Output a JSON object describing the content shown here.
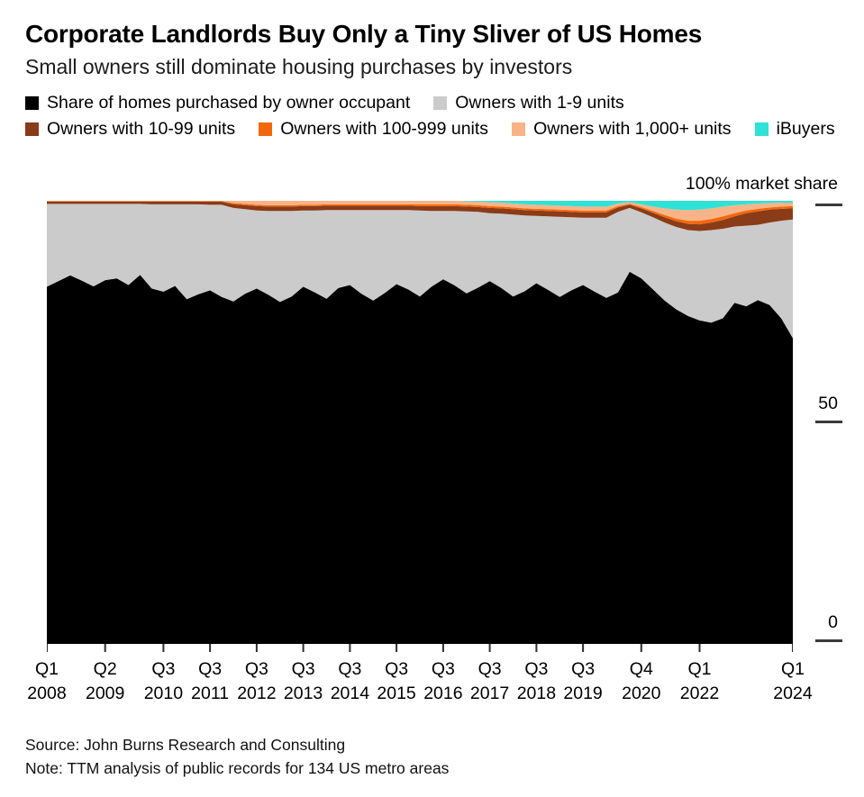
{
  "header": {
    "title": "Corporate Landlords Buy Only a Tiny Sliver of US Homes",
    "subtitle": "Small owners still dominate housing purchases by investors"
  },
  "legend": {
    "items": [
      {
        "label": "Share of homes purchased by owner occupant",
        "color": "#000000"
      },
      {
        "label": "Owners with 1-9 units",
        "color": "#cbcbcb"
      },
      {
        "label": "Owners with 10-99 units",
        "color": "#8a3b17"
      },
      {
        "label": "Owners with 100-999 units",
        "color": "#f2670c"
      },
      {
        "label": "Owners with 1,000+ units",
        "color": "#f8b488"
      },
      {
        "label": "iBuyers",
        "color": "#2ee3d6"
      }
    ]
  },
  "chart_data": {
    "type": "area",
    "stacked": true,
    "unit": "% market share",
    "x_frequency": "quarterly",
    "x_start": "2008 Q1",
    "x_end": "2024 Q1",
    "ylim": [
      0,
      100
    ],
    "grid": false,
    "legend_position": "top",
    "y_ticks": [
      {
        "value": 100,
        "label": "100% market share"
      },
      {
        "value": 50,
        "label": "50"
      },
      {
        "value": 0,
        "label": "0"
      }
    ],
    "x_ticks": [
      {
        "index": 0,
        "quarter": "Q1",
        "year": "2008"
      },
      {
        "index": 5,
        "quarter": "Q2",
        "year": "2009"
      },
      {
        "index": 10,
        "quarter": "Q3",
        "year": "2010"
      },
      {
        "index": 14,
        "quarter": "Q3",
        "year": "2011"
      },
      {
        "index": 18,
        "quarter": "Q3",
        "year": "2012"
      },
      {
        "index": 22,
        "quarter": "Q3",
        "year": "2013"
      },
      {
        "index": 26,
        "quarter": "Q3",
        "year": "2014"
      },
      {
        "index": 30,
        "quarter": "Q3",
        "year": "2015"
      },
      {
        "index": 34,
        "quarter": "Q3",
        "year": "2016"
      },
      {
        "index": 38,
        "quarter": "Q3",
        "year": "2017"
      },
      {
        "index": 42,
        "quarter": "Q3",
        "year": "2018"
      },
      {
        "index": 46,
        "quarter": "Q3",
        "year": "2019"
      },
      {
        "index": 51,
        "quarter": "Q4",
        "year": "2020"
      },
      {
        "index": 56,
        "quarter": "Q1",
        "year": "2022"
      },
      {
        "index": 64,
        "quarter": "Q1",
        "year": "2024"
      }
    ],
    "series": [
      {
        "id": "owner-occupant",
        "name": "Share of homes purchased by owner occupant",
        "color": "#000000",
        "values": [
          80.6,
          81.9,
          83.2,
          82.0,
          80.7,
          82.1,
          82.5,
          81.0,
          83.3,
          80.2,
          79.5,
          80.8,
          77.8,
          78.9,
          79.8,
          78.3,
          77.3,
          79.0,
          80.2,
          78.8,
          77.2,
          78.4,
          80.6,
          79.3,
          77.9,
          80.3,
          81.0,
          79.0,
          77.5,
          79.2,
          81.2,
          80.0,
          78.4,
          80.6,
          82.3,
          80.9,
          79.1,
          80.4,
          81.9,
          80.3,
          78.4,
          79.6,
          81.4,
          79.9,
          78.3,
          79.8,
          81.0,
          79.5,
          78.1,
          79.3,
          84.0,
          82.5,
          80.0,
          77.5,
          75.5,
          74.0,
          73.0,
          72.5,
          73.5,
          77.0,
          76.2,
          77.6,
          76.5,
          73.5,
          69.0
        ]
      },
      {
        "id": "owners-1-9",
        "name": "Owners with 1-9 units",
        "color": "#cbcbcb",
        "remainder": true
      },
      {
        "id": "owners-10-99",
        "name": "Owners with 10-99 units",
        "color": "#8a3b17",
        "values": [
          0.5,
          0.5,
          0.5,
          0.5,
          0.5,
          0.5,
          0.5,
          0.5,
          0.5,
          0.6,
          0.6,
          0.6,
          0.6,
          0.6,
          0.7,
          0.7,
          0.8,
          0.9,
          1.0,
          1.0,
          1.0,
          1.0,
          1.0,
          1.0,
          1.0,
          1.0,
          1.0,
          1.0,
          1.0,
          1.0,
          1.0,
          1.0,
          1.0,
          1.1,
          1.1,
          1.1,
          1.1,
          1.1,
          1.2,
          1.2,
          1.2,
          1.2,
          1.2,
          1.2,
          1.2,
          1.2,
          1.2,
          1.2,
          1.2,
          1.0,
          0.7,
          0.9,
          1.0,
          1.2,
          1.3,
          1.4,
          1.5,
          1.7,
          2.0,
          2.3,
          2.8,
          3.0,
          2.9,
          2.7,
          2.5
        ]
      },
      {
        "id": "owners-100-999",
        "name": "Owners with 100-999 units",
        "color": "#f2670c",
        "values": [
          0.15,
          0.15,
          0.15,
          0.15,
          0.15,
          0.15,
          0.15,
          0.15,
          0.15,
          0.15,
          0.15,
          0.15,
          0.15,
          0.15,
          0.15,
          0.15,
          0.3,
          0.3,
          0.3,
          0.3,
          0.3,
          0.3,
          0.3,
          0.3,
          0.3,
          0.3,
          0.3,
          0.3,
          0.3,
          0.3,
          0.3,
          0.3,
          0.4,
          0.4,
          0.4,
          0.4,
          0.4,
          0.4,
          0.4,
          0.4,
          0.4,
          0.4,
          0.4,
          0.4,
          0.4,
          0.4,
          0.4,
          0.4,
          0.4,
          0.3,
          0.2,
          0.3,
          0.4,
          0.5,
          0.6,
          0.7,
          0.8,
          0.8,
          0.8,
          0.7,
          0.6,
          0.6,
          0.5,
          0.5,
          0.5
        ]
      },
      {
        "id": "owners-1000-plus",
        "name": "Owners with 1,000+ units",
        "color": "#f8b488",
        "values": [
          0.05,
          0.05,
          0.05,
          0.05,
          0.05,
          0.05,
          0.05,
          0.05,
          0.05,
          0.05,
          0.05,
          0.05,
          0.05,
          0.05,
          0.05,
          0.05,
          0.5,
          0.7,
          0.9,
          1.0,
          1.0,
          1.0,
          0.9,
          0.9,
          0.8,
          0.8,
          0.8,
          0.8,
          0.8,
          0.8,
          0.8,
          0.8,
          0.8,
          0.8,
          0.8,
          0.8,
          0.8,
          0.8,
          0.9,
          0.9,
          0.9,
          0.9,
          0.9,
          0.9,
          0.9,
          0.9,
          0.9,
          0.9,
          0.9,
          0.6,
          0.4,
          0.6,
          1.0,
          1.5,
          2.0,
          2.4,
          2.5,
          2.4,
          2.2,
          1.8,
          1.4,
          1.2,
          1.0,
          0.9,
          0.8
        ]
      },
      {
        "id": "ibuyers",
        "name": "iBuyers",
        "color": "#2ee3d6",
        "values": [
          0,
          0,
          0,
          0,
          0,
          0,
          0,
          0,
          0,
          0,
          0,
          0,
          0,
          0,
          0,
          0,
          0,
          0,
          0,
          0,
          0,
          0,
          0,
          0,
          0,
          0,
          0,
          0,
          0,
          0,
          0,
          0,
          0,
          0,
          0,
          0,
          0.1,
          0.2,
          0.3,
          0.4,
          0.6,
          0.8,
          0.9,
          1.0,
          1.1,
          1.2,
          1.3,
          1.3,
          1.3,
          0.6,
          0.3,
          0.8,
          1.3,
          1.7,
          2.0,
          2.1,
          2.0,
          1.7,
          1.3,
          1.0,
          0.8,
          0.6,
          0.5,
          0.4,
          0.4
        ]
      }
    ]
  },
  "footer": {
    "source": "Source: John Burns Research and Consulting",
    "note": "Note: TTM analysis of public records for 134 US metro areas"
  }
}
